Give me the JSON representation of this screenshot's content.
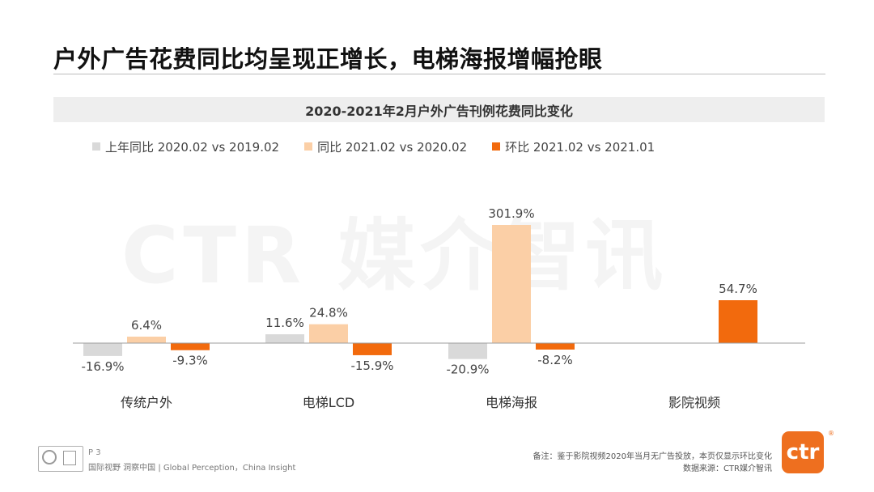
{
  "slide": {
    "title": "户外广告花费同比均呈现正增长，电梯海报增幅抢眼",
    "watermark": "CTR 媒介智讯"
  },
  "chart_data": {
    "type": "bar",
    "title": "2020-2021年2月户外广告刊例花费同比变化",
    "categories": [
      "传统户外",
      "电梯LCD",
      "电梯海报",
      "影院视频"
    ],
    "series": [
      {
        "name": "上年同比 2020.02 vs 2019.02",
        "color": "#d9d9d9",
        "values": [
          -16.9,
          11.6,
          -20.9,
          null
        ],
        "labels": [
          "-16.9%",
          "11.6%",
          "-20.9%",
          ""
        ]
      },
      {
        "name": "同比 2021.02 vs 2020.02",
        "color": "#fbcfa6",
        "values": [
          6.4,
          24.8,
          301.9,
          null
        ],
        "labels": [
          "6.4%",
          "24.8%",
          "301.9%",
          ""
        ]
      },
      {
        "name": "环比 2021.02 vs 2021.01",
        "color": "#f26a0d",
        "values": [
          -9.3,
          -15.9,
          -8.2,
          54.7
        ],
        "labels": [
          "-9.3%",
          "-15.9%",
          "-8.2%",
          "54.7%"
        ]
      }
    ],
    "unit": "%",
    "legend_position": "top-left",
    "grid": false,
    "axis_break": true
  },
  "footer": {
    "page": "P 3",
    "tagline": "国际视野  洞察中国 | Global Perception，China Insight",
    "note": "备注：鉴于影院视频2020年当月无广告投放，本页仅显示环比变化",
    "source": "数据来源：CTR媒介智讯",
    "logo_text": "ctr",
    "logo_mark": "®"
  }
}
